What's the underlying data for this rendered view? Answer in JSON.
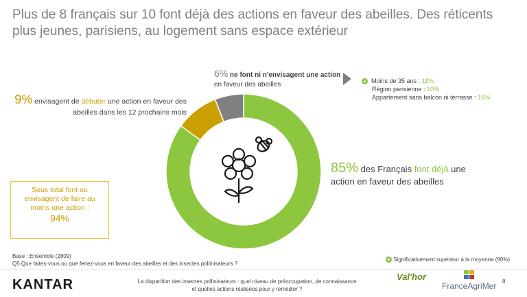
{
  "title": "Plus de 8 français sur 10 font déjà des actions en faveur des abeilles. Des réticents plus jeunes, parisiens, au logement sans espace extérieur",
  "chart_data": {
    "type": "pie",
    "categories": [
      "font déjà une action",
      "envisagent de débuter",
      "ne font ni n'envisagent"
    ],
    "values": [
      85,
      9,
      6
    ],
    "colors": [
      "#8dc63f",
      "#c9a000",
      "#808080"
    ],
    "center_icon": "flower-and-bee-icon"
  },
  "labels": {
    "pct_85": "85%",
    "text_85_a": " des Français ",
    "text_85_b": "font déjà",
    "text_85_c": " une action en faveur des abeilles",
    "pct_9": "9%",
    "text_9_a": " envisagent de ",
    "text_9_b": "débuter",
    "text_9_c": " une action en faveur des abeilles dans les 12 prochains mois",
    "pct_6": "6%",
    "text_6_a": " ne font ni n'envisagent une action",
    "text_6_b": "en faveur des abeilles"
  },
  "subgroups": [
    {
      "label": "Moins de 35 ans : ",
      "value": "11%"
    },
    {
      "label": "Région parisienne : ",
      "value": "10%"
    },
    {
      "label": "Appartement sans balcon ni terrasse : ",
      "value": "16%"
    }
  ],
  "subtotal": {
    "text": "Sous total font ou envisagent de faire au moins une action :",
    "value": "94%"
  },
  "base": {
    "line1": "Base : Ensemble (2809)",
    "line2": "Q5 Que faites-vous ou que feriez-vous en faveur des abeilles et des insectes pollinisateurs ?"
  },
  "legend": "Significativement supérieur à la moyenne (90%)",
  "footer": {
    "brand": "KANTAR",
    "text": "La disparition des insectes pollinisateurs : quel niveau de préoccupation, de connaissance et quelles actions réalisées pour y remédier ?",
    "logo1": "Val'hor",
    "logo2": "FranceAgriMer",
    "page": "8"
  }
}
